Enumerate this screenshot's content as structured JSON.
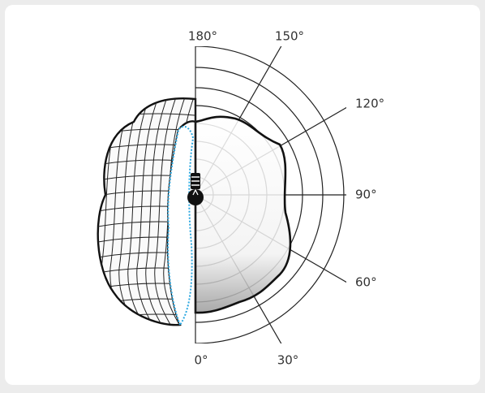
{
  "angle_labels": [
    "180°",
    "150°",
    "120°",
    "90°",
    "60°",
    "30°",
    "0°"
  ]
}
